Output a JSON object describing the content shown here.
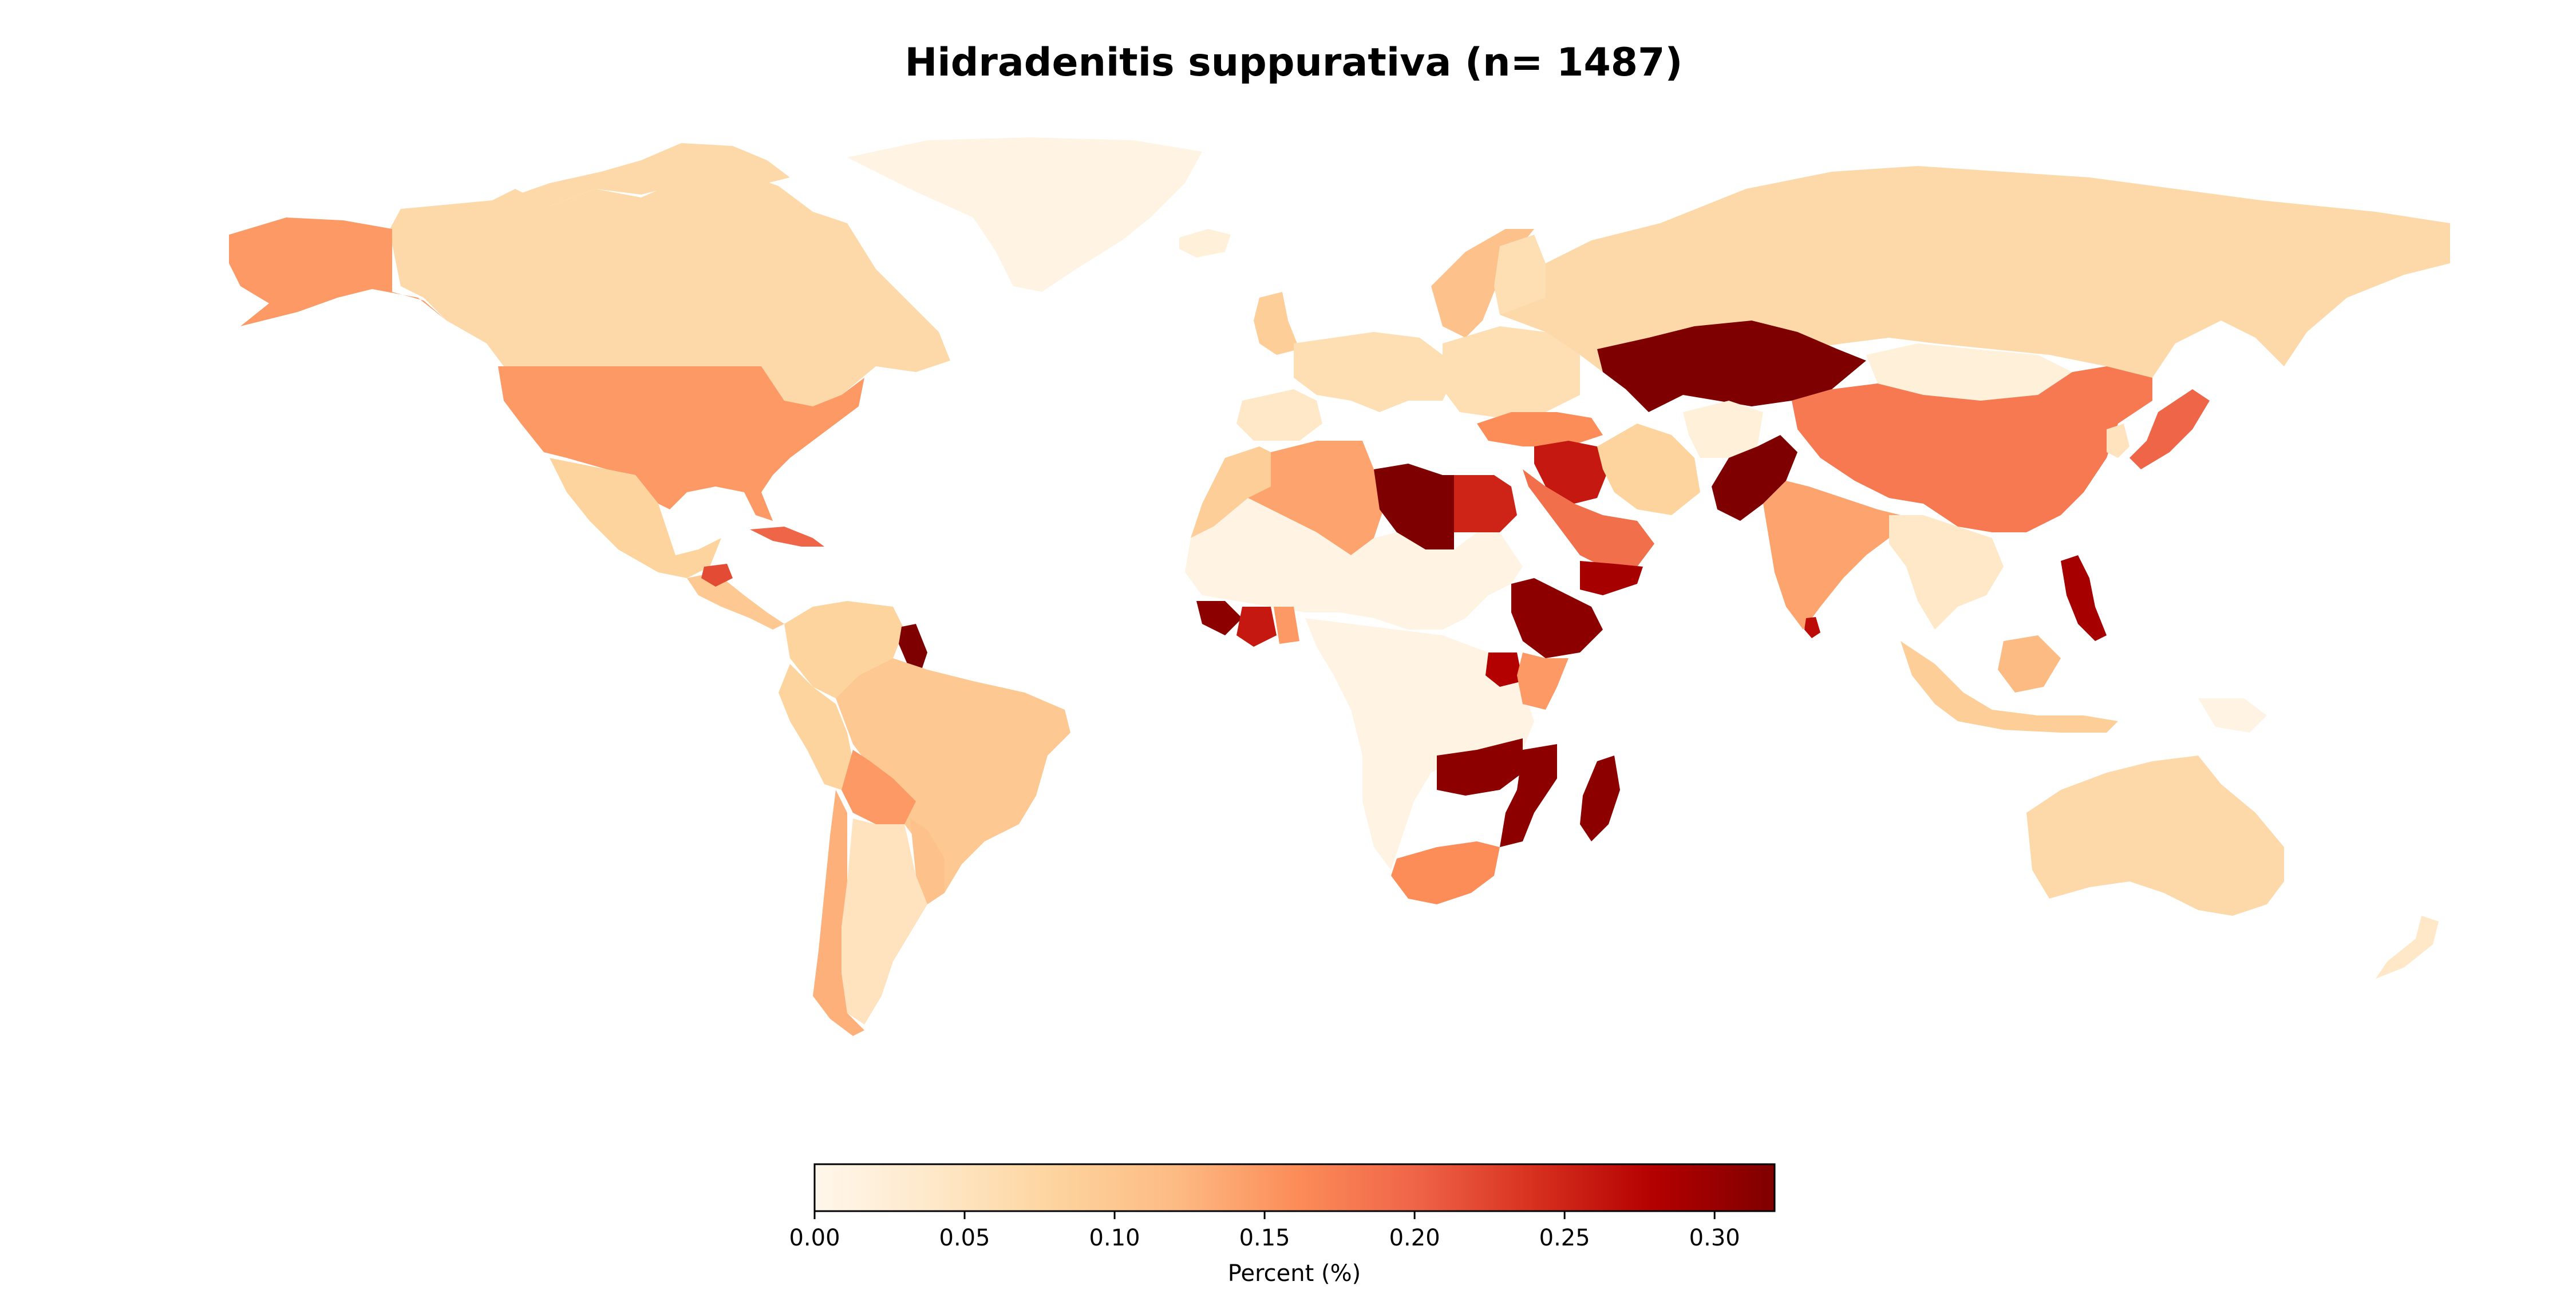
{
  "chart_data": {
    "type": "choropleth",
    "title": "Hidradenitis suppurativa (n= 1487)",
    "colorbar": {
      "label": "Percent (%)",
      "min": 0.0,
      "max": 0.32,
      "ticks": [
        "0.00",
        "0.05",
        "0.10",
        "0.15",
        "0.20",
        "0.25",
        "0.30"
      ],
      "tick_values": [
        0.0,
        0.05,
        0.1,
        0.15,
        0.2,
        0.25,
        0.3
      ],
      "colormap": "OrRd",
      "stops": [
        "#fff7ec",
        "#fee8c8",
        "#fdd49e",
        "#fdbb84",
        "#fc8d59",
        "#ef6548",
        "#d7301f",
        "#b30000",
        "#7f0000"
      ],
      "orientation": "horizontal",
      "placement": "bottom-center"
    },
    "regions": [
      {
        "name": "Canada",
        "value": 0.07
      },
      {
        "name": "United States",
        "value": 0.15
      },
      {
        "name": "Alaska",
        "value": 0.15
      },
      {
        "name": "Greenland",
        "value": 0.01
      },
      {
        "name": "Mexico",
        "value": 0.08
      },
      {
        "name": "Cuba",
        "value": 0.2
      },
      {
        "name": "Central America",
        "value": 0.1
      },
      {
        "name": "Honduras",
        "value": 0.22
      },
      {
        "name": "Colombia / Venezuela",
        "value": 0.08
      },
      {
        "name": "Guyana",
        "value": 0.32
      },
      {
        "name": "Brazil",
        "value": 0.1
      },
      {
        "name": "Peru",
        "value": 0.08
      },
      {
        "name": "Bolivia",
        "value": 0.15
      },
      {
        "name": "Chile",
        "value": 0.13
      },
      {
        "name": "Argentina",
        "value": 0.05
      },
      {
        "name": "Uruguay / Paraguay",
        "value": 0.11
      },
      {
        "name": "Iceland",
        "value": 0.02
      },
      {
        "name": "Norway / Sweden",
        "value": 0.11
      },
      {
        "name": "Finland",
        "value": 0.06
      },
      {
        "name": "United Kingdom",
        "value": 0.09
      },
      {
        "name": "Western Europe",
        "value": 0.06
      },
      {
        "name": "Spain / Portugal",
        "value": 0.04
      },
      {
        "name": "Eastern Europe",
        "value": 0.06
      },
      {
        "name": "Turkey",
        "value": 0.16
      },
      {
        "name": "Russia",
        "value": 0.07
      },
      {
        "name": "Kazakhstan",
        "value": 0.32
      },
      {
        "name": "Mongolia",
        "value": 0.02
      },
      {
        "name": "China",
        "value": 0.18
      },
      {
        "name": "Japan",
        "value": 0.2
      },
      {
        "name": "Korea",
        "value": 0.05
      },
      {
        "name": "Iran",
        "value": 0.08
      },
      {
        "name": "Afghanistan",
        "value": 0.02
      },
      {
        "name": "Pakistan",
        "value": 0.32
      },
      {
        "name": "India",
        "value": 0.14
      },
      {
        "name": "Sri Lanka",
        "value": 0.27
      },
      {
        "name": "Saudi Arabia",
        "value": 0.19
      },
      {
        "name": "Yemen",
        "value": 0.29
      },
      {
        "name": "Iraq / Syria",
        "value": 0.26
      },
      {
        "name": "Algeria",
        "value": 0.14
      },
      {
        "name": "Morocco",
        "value": 0.09
      },
      {
        "name": "Libya",
        "value": 0.32
      },
      {
        "name": "Egypt",
        "value": 0.25
      },
      {
        "name": "Sahara / Sahel",
        "value": 0.01
      },
      {
        "name": "Liberia / Sierra Leone",
        "value": 0.31
      },
      {
        "name": "Côte d'Ivoire",
        "value": 0.26
      },
      {
        "name": "Ghana",
        "value": 0.15
      },
      {
        "name": "Ethiopia",
        "value": 0.31
      },
      {
        "name": "Kenya",
        "value": 0.15
      },
      {
        "name": "Uganda",
        "value": 0.28
      },
      {
        "name": "Central / West Africa",
        "value": 0.01
      },
      {
        "name": "Zambia / Malawi",
        "value": 0.31
      },
      {
        "name": "Mozambique",
        "value": 0.31
      },
      {
        "name": "Madagascar",
        "value": 0.31
      },
      {
        "name": "South Africa",
        "value": 0.16
      },
      {
        "name": "Southeast Asia",
        "value": 0.04
      },
      {
        "name": "Philippines",
        "value": 0.29
      },
      {
        "name": "Indonesia",
        "value": 0.09
      },
      {
        "name": "Borneo",
        "value": 0.12
      },
      {
        "name": "Papua New Guinea",
        "value": 0.01
      },
      {
        "name": "Australia",
        "value": 0.07
      },
      {
        "name": "New Zealand",
        "value": 0.04
      }
    ]
  }
}
